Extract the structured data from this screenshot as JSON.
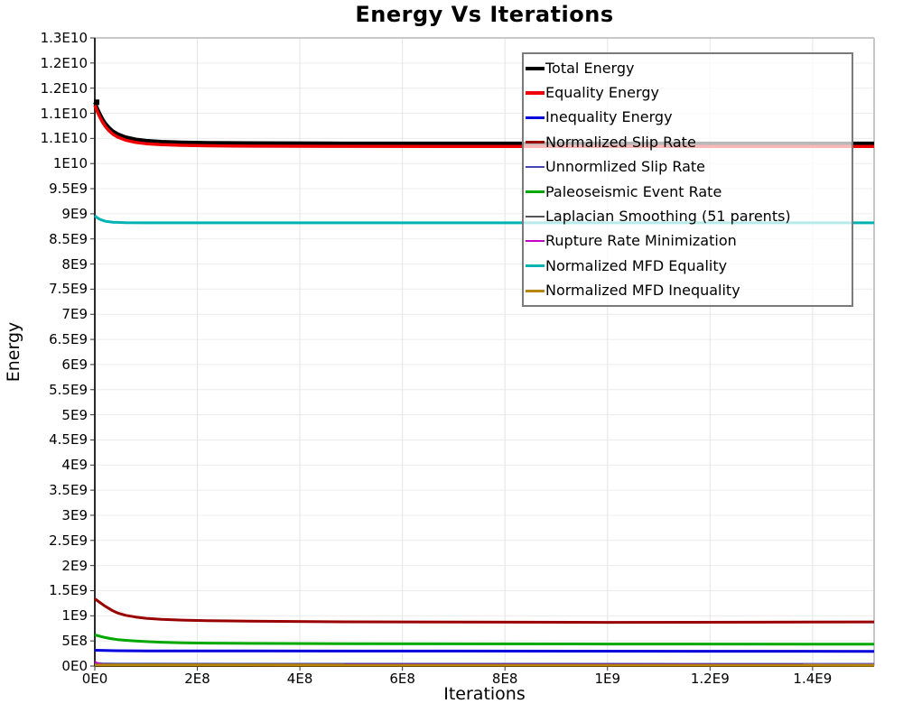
{
  "title": "Energy Vs Iterations",
  "axes": {
    "x_label": "Iterations",
    "y_label": "Energy",
    "x_tick_labels": [
      "0E0",
      "2E8",
      "4E8",
      "6E8",
      "8E8",
      "1E9",
      "1.2E9",
      "1.4E9"
    ],
    "y_tick_labels": [
      "1.3E10",
      "1.2E10",
      "1.2E10",
      "1.1E10",
      "1.1E10",
      "1E10",
      "9.5E9",
      "9E9",
      "8.5E9",
      "8E9",
      "7.5E9",
      "7E9",
      "6.5E9",
      "6E9",
      "5.5E9",
      "5E9",
      "4.5E9",
      "4E9",
      "3.5E9",
      "3E9",
      "2.5E9",
      "2E9",
      "1.5E9",
      "1E9",
      "5E8",
      "0E0"
    ]
  },
  "legend": {
    "items": [
      {
        "label": "Total Energy",
        "color": "#000000",
        "thickness": 4
      },
      {
        "label": "Equality Energy",
        "color": "#ee0000",
        "thickness": 4
      },
      {
        "label": "Inequality Energy",
        "color": "#0000dd",
        "thickness": 3
      },
      {
        "label": "Normalized Slip Rate",
        "color": "#990000",
        "thickness": 3
      },
      {
        "label": "Unnormlized Slip Rate",
        "color": "#4545b5",
        "thickness": 2
      },
      {
        "label": "Paleoseismic Event Rate",
        "color": "#00a800",
        "thickness": 3
      },
      {
        "label": "Laplacian Smoothing (51 parents)",
        "color": "#555555",
        "thickness": 2
      },
      {
        "label": "Rupture Rate Minimization",
        "color": "#c400c4",
        "thickness": 2
      },
      {
        "label": "Normalized MFD Equality",
        "color": "#00b2b2",
        "thickness": 3
      },
      {
        "label": "Normalized MFD Inequality",
        "color": "#b8860b",
        "thickness": 3
      }
    ]
  },
  "chart_data": {
    "type": "line",
    "title": "Energy Vs Iterations",
    "xlabel": "Iterations",
    "ylabel": "Energy",
    "xlim": [
      0,
      1520000000.0
    ],
    "ylim": [
      0,
      12500000000.0
    ],
    "x_tick_step": 200000000.0,
    "y_tick_step": 500000000.0,
    "grid": true,
    "legend_position": "upper-right-inside",
    "series": [
      {
        "name": "Total Energy",
        "color": "#000000",
        "width": 4,
        "start_marker": true,
        "x": [
          0,
          5000000.0,
          10000000.0,
          15000000.0,
          20000000.0,
          27500000.0,
          35000000.0,
          45000000.0,
          60000000.0,
          80000000.0,
          100000000.0,
          130000000.0,
          170000000.0,
          220000000.0,
          300000000.0,
          450000000.0,
          700000000.0,
          1000000000.0,
          1300000000.0,
          1520000000.0
        ],
        "y": [
          11220000000.0,
          11090000000.0,
          10980000000.0,
          10885000000.0,
          10805000000.0,
          10715000000.0,
          10645000000.0,
          10585000000.0,
          10525000000.0,
          10480000000.0,
          10455000000.0,
          10435000000.0,
          10422000000.0,
          10413000000.0,
          10407000000.0,
          10403000000.0,
          10401000000.0,
          10400000000.0,
          10400000000.0,
          10400000000.0
        ]
      },
      {
        "name": "Equality Energy",
        "color": "#ee0000",
        "width": 3.5,
        "x": [
          0,
          5000000.0,
          10000000.0,
          15000000.0,
          20000000.0,
          27500000.0,
          35000000.0,
          45000000.0,
          60000000.0,
          80000000.0,
          100000000.0,
          130000000.0,
          170000000.0,
          220000000.0,
          300000000.0,
          450000000.0,
          700000000.0,
          1000000000.0,
          1300000000.0,
          1520000000.0
        ],
        "y": [
          11160000000.0,
          11030000000.0,
          10920000000.0,
          10825000000.0,
          10745000000.0,
          10655000000.0,
          10585000000.0,
          10525000000.0,
          10465000000.0,
          10420000000.0,
          10395000000.0,
          10375000000.0,
          10362000000.0,
          10353000000.0,
          10347000000.0,
          10343000000.0,
          10341000000.0,
          10340000000.0,
          10340000000.0,
          10340000000.0
        ]
      },
      {
        "name": "Inequality Energy",
        "color": "#0000dd",
        "width": 3,
        "x": [
          0,
          30000000.0,
          100000000.0,
          300000000.0,
          1520000000.0
        ],
        "y": [
          315000000.0,
          307000000.0,
          302000000.0,
          300000000.0,
          292000000.0
        ]
      },
      {
        "name": "Normalized Slip Rate",
        "color": "#990000",
        "width": 3,
        "x": [
          0,
          5000000.0,
          10000000.0,
          15000000.0,
          20000000.0,
          27500000.0,
          35000000.0,
          45000000.0,
          60000000.0,
          80000000.0,
          100000000.0,
          130000000.0,
          170000000.0,
          220000000.0,
          300000000.0,
          450000000.0,
          700000000.0,
          1000000000.0,
          1300000000.0,
          1520000000.0
        ],
        "y": [
          1340000000.0,
          1302000000.0,
          1265000000.0,
          1228000000.0,
          1190000000.0,
          1145000000.0,
          1100000000.0,
          1055000000.0,
          1010000000.0,
          975000000.0,
          950000000.0,
          930000000.0,
          915000000.0,
          903000000.0,
          893000000.0,
          882000000.0,
          874000000.0,
          870000000.0,
          873000000.0,
          878000000.0
        ]
      },
      {
        "name": "Unnormlized Slip Rate",
        "color": "#4545b5",
        "width": 2,
        "opacity": 0.85,
        "x": [
          0,
          15000000.0,
          50000000.0,
          1520000000.0
        ],
        "y": [
          65000000.0,
          54000000.0,
          48000000.0,
          45000000.0
        ]
      },
      {
        "name": "Paleoseismic Event Rate",
        "color": "#00a800",
        "width": 3,
        "x": [
          0,
          10000000.0,
          20000000.0,
          30000000.0,
          45000000.0,
          60000000.0,
          80000000.0,
          100000000.0,
          130000000.0,
          170000000.0,
          220000000.0,
          300000000.0,
          500000000.0,
          1000000000.0,
          1520000000.0
        ],
        "y": [
          620000000.0,
          592000000.0,
          568000000.0,
          548000000.0,
          527000000.0,
          512000000.0,
          497000000.0,
          486000000.0,
          474000000.0,
          464000000.0,
          456000000.0,
          450000000.0,
          444000000.0,
          439000000.0,
          435000000.0
        ]
      },
      {
        "name": "Laplacian Smoothing (51 parents)",
        "color": "#555555",
        "width": 2,
        "x": [
          0,
          1520000000.0
        ],
        "y": [
          38000000.0,
          34000000.0
        ]
      },
      {
        "name": "Rupture Rate Minimization",
        "color": "#c400c4",
        "width": 2,
        "x": [
          0,
          6000000.0,
          15000000.0,
          40000000.0,
          1520000000.0
        ],
        "y": [
          90000000.0,
          50000000.0,
          32000000.0,
          26000000.0,
          24000000.0
        ]
      },
      {
        "name": "Normalized MFD Equality",
        "color": "#00b2b2",
        "width": 3,
        "x": [
          0,
          5000000.0,
          10000000.0,
          20000000.0,
          35000000.0,
          60000000.0,
          100000000.0,
          1520000000.0
        ],
        "y": [
          8960000000.0,
          8920000000.0,
          8888000000.0,
          8852000000.0,
          8832000000.0,
          8822000000.0,
          8820000000.0,
          8820000000.0
        ]
      },
      {
        "name": "Normalized MFD Inequality",
        "color": "#b8860b",
        "width": 3,
        "x": [
          0,
          1520000000.0
        ],
        "y": [
          18000000.0,
          15000000.0
        ]
      }
    ]
  }
}
